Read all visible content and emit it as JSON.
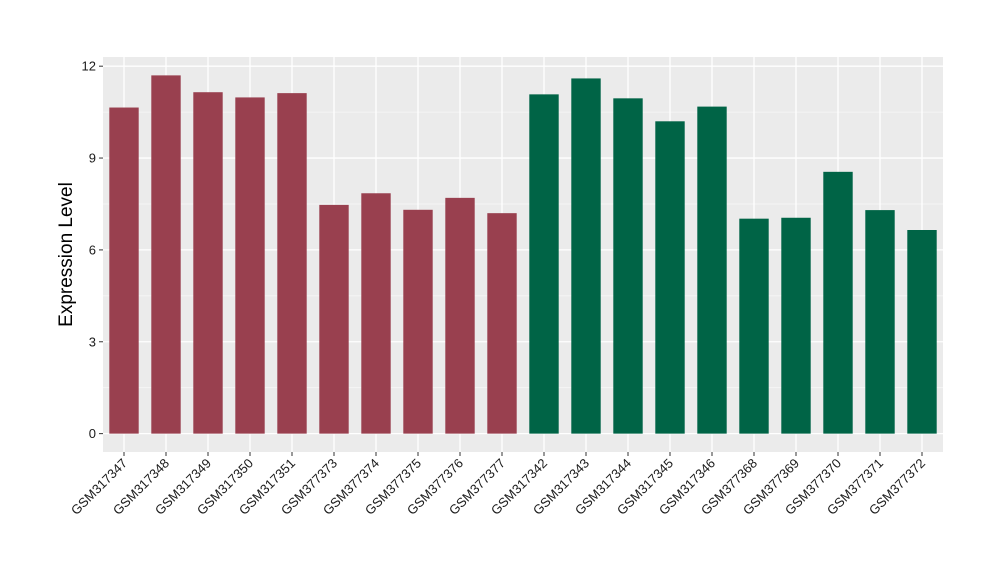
{
  "chart_data": {
    "type": "bar",
    "title": "",
    "xlabel": "",
    "ylabel": "Expression Level",
    "ylim": [
      -0.6,
      12.3
    ],
    "yticks": [
      0,
      3,
      6,
      9,
      12
    ],
    "grid": true,
    "legend": "none",
    "background": "#ebebeb",
    "categories": [
      "GSM317347",
      "GSM317348",
      "GSM317349",
      "GSM317350",
      "GSM317351",
      "GSM377373",
      "GSM377374",
      "GSM377375",
      "GSM377376",
      "GSM377377",
      "GSM317342",
      "GSM317343",
      "GSM317344",
      "GSM317345",
      "GSM317346",
      "GSM377368",
      "GSM377369",
      "GSM377370",
      "GSM377371",
      "GSM377372"
    ],
    "values": [
      10.65,
      11.7,
      11.15,
      10.98,
      11.12,
      7.47,
      7.85,
      7.31,
      7.7,
      7.2,
      11.08,
      11.6,
      10.95,
      10.2,
      10.68,
      7.02,
      7.05,
      8.55,
      7.3,
      6.65
    ],
    "groups": [
      0,
      0,
      0,
      0,
      0,
      0,
      0,
      0,
      0,
      0,
      1,
      1,
      1,
      1,
      1,
      1,
      1,
      1,
      1,
      1
    ],
    "colors": [
      "#99404f",
      "#006446"
    ]
  }
}
